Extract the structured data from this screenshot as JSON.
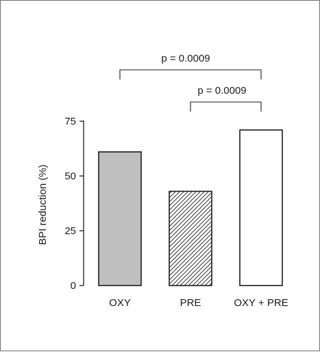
{
  "chart_data": {
    "type": "bar",
    "categories": [
      "OXY",
      "PRE",
      "OXY + PRE"
    ],
    "values": [
      61,
      43,
      71
    ],
    "patterns": [
      "solid-gray",
      "diagonal-hatch",
      "none"
    ],
    "fill_colors": [
      "#bfbfbf",
      "#ffffff",
      "#ffffff"
    ],
    "ylabel": "BPI reduction (%)",
    "ylim": [
      0,
      75
    ],
    "yticks": [
      0,
      25,
      50,
      75
    ],
    "grid": false,
    "annotations": [
      {
        "text": "p = 0.0009",
        "from": "OXY",
        "to": "OXY + PRE"
      },
      {
        "text": "p = 0.0009",
        "from": "PRE",
        "to": "OXY + PRE"
      }
    ]
  }
}
